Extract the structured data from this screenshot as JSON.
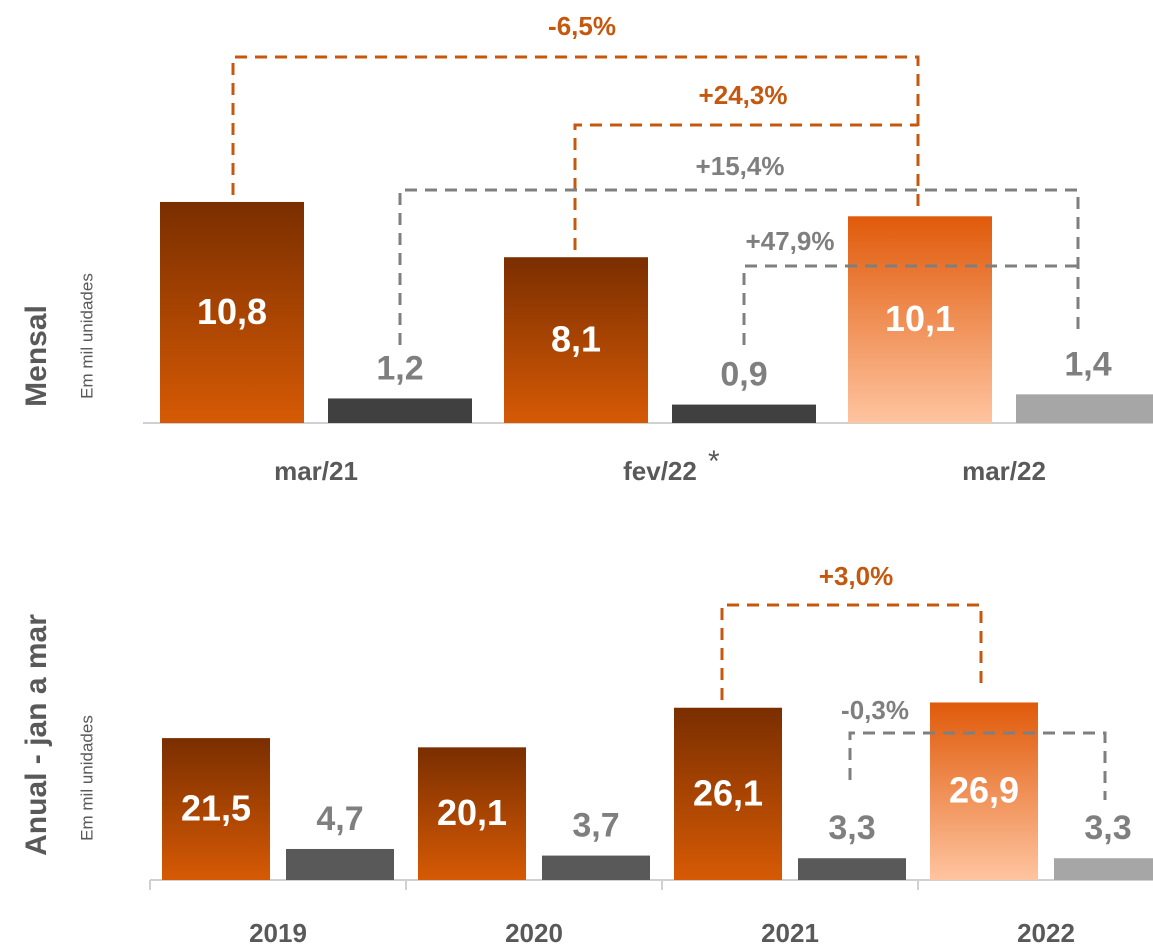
{
  "chart_data": [
    {
      "type": "bar",
      "title": "Mensal",
      "subtitle": "Em mil unidades",
      "categories": [
        "mar/21",
        "fev/22",
        "mar/22"
      ],
      "footnote_mark": "*",
      "series": [
        {
          "colors": [
            [
              "#7a2e00",
              "#d65a05"
            ],
            [
              "#7a2e00",
              "#d65a05"
            ],
            [
              "#e05a0a",
              "#ffc4a0"
            ]
          ],
          "values": [
            10.8,
            8.1,
            10.1
          ],
          "value_labels": [
            "10,8",
            "8,1",
            "10,1"
          ]
        },
        {
          "colors": [
            [
              "#404040",
              "#404040"
            ],
            [
              "#404040",
              "#404040"
            ],
            [
              "#a6a6a6",
              "#a6a6a6"
            ]
          ],
          "values": [
            1.2,
            0.9,
            1.4
          ],
          "value_labels": [
            "1,2",
            "0,9",
            "1,4"
          ]
        }
      ],
      "ylim": [
        0,
        15
      ],
      "annotations": [
        {
          "text": "-6,5%",
          "color": "#c5580e"
        },
        {
          "text": "+24,3%",
          "color": "#c5580e"
        },
        {
          "text": "+15,4%",
          "color": "#7f7f7f"
        },
        {
          "text": "+47,9%",
          "color": "#7f7f7f"
        }
      ]
    },
    {
      "type": "bar",
      "title": "Anual - jan a mar",
      "subtitle": "Em mil unidades",
      "categories": [
        "2019",
        "2020",
        "2021",
        "2022"
      ],
      "series": [
        {
          "colors": [
            [
              "#7a2e00",
              "#d65a05"
            ],
            [
              "#7a2e00",
              "#d65a05"
            ],
            [
              "#7a2e00",
              "#d65a05"
            ],
            [
              "#e05a0a",
              "#ffc4a0"
            ]
          ],
          "values": [
            21.5,
            20.1,
            26.1,
            26.9
          ],
          "value_labels": [
            "21,5",
            "20,1",
            "26,1",
            "26,9"
          ]
        },
        {
          "colors": [
            [
              "#595959",
              "#595959"
            ],
            [
              "#595959",
              "#595959"
            ],
            [
              "#595959",
              "#595959"
            ],
            [
              "#a6a6a6",
              "#a6a6a6"
            ]
          ],
          "values": [
            4.7,
            3.7,
            3.3,
            3.3
          ],
          "value_labels": [
            "4,7",
            "3,7",
            "3,3",
            "3,3"
          ]
        }
      ],
      "ylim": [
        0,
        40
      ],
      "annotations": [
        {
          "text": "+3,0%",
          "color": "#c5580e"
        },
        {
          "text": "-0,3%",
          "color": "#7f7f7f"
        }
      ]
    }
  ]
}
